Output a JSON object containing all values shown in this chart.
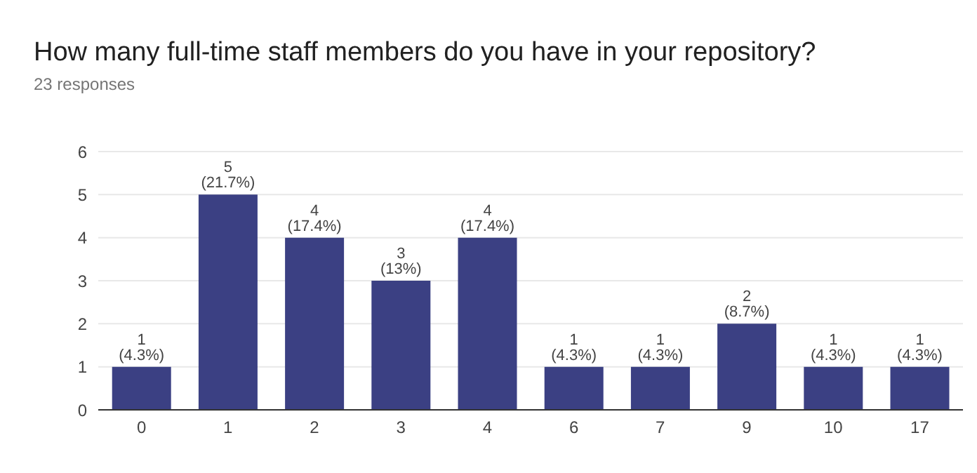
{
  "chart_data": {
    "type": "bar",
    "title": "How many full-time staff members do you have in your repository?",
    "subtitle": "23 responses",
    "categories": [
      "0",
      "1",
      "2",
      "3",
      "4",
      "6",
      "7",
      "9",
      "10",
      "17"
    ],
    "values": [
      1,
      5,
      4,
      3,
      4,
      1,
      1,
      2,
      1,
      1
    ],
    "value_labels": [
      "1 (4.3%)",
      "5 (21.7%)",
      "4 (17.4%)",
      "3 (13%)",
      "4 (17.4%)",
      "1 (4.3%)",
      "1 (4.3%)",
      "2 (8.7%)",
      "1 (4.3%)",
      "1 (4.3%)"
    ],
    "color": "#3b4083",
    "ylim": [
      0,
      6
    ],
    "yticks": [
      0,
      1,
      2,
      3,
      4,
      5,
      6
    ],
    "grid": "y"
  }
}
